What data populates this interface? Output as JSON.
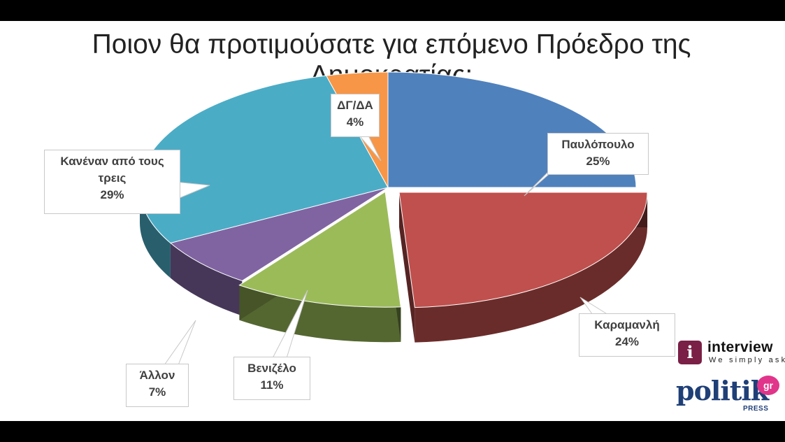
{
  "chart_data": {
    "type": "pie",
    "title": "Ποιον θα προτιμούσατε για επόμενο Πρόεδρο της Δημοκρατίας;",
    "slices": [
      {
        "label": "Παυλόπουλο",
        "value": 25,
        "value_label": "25%",
        "color": "#4f81bd"
      },
      {
        "label": "Καραμανλή",
        "value": 24,
        "value_label": "24%",
        "color": "#c0504d"
      },
      {
        "label": "Βενιζέλο",
        "value": 11,
        "value_label": "11%",
        "color": "#9bbb59"
      },
      {
        "label": "Άλλον",
        "value": 7,
        "value_label": "7%",
        "color": "#8064a2"
      },
      {
        "label": "Κανέναν από τους τρεις",
        "value": 29,
        "value_label": "29%",
        "color": "#4bacc6"
      },
      {
        "label": "ΔΓ/ΔΑ",
        "value": 4,
        "value_label": "4%",
        "color": "#f79646"
      }
    ],
    "legend": "none",
    "style": "3d-exploded"
  },
  "labels": {
    "pavlopoulo": {
      "line1": "Παυλόπουλο",
      "line2": "25%"
    },
    "karamanli": {
      "line1": "Καραμανλή",
      "line2": "24%"
    },
    "venizelo": {
      "line1": "Βενιζέλο",
      "line2": "11%"
    },
    "allon": {
      "line1": "Άλλον",
      "line2": "7%"
    },
    "kanenan": {
      "line1": "Κανέναν από τους",
      "line2": "τρεις",
      "line3": "29%"
    },
    "dgda": {
      "line1": "ΔΓ/ΔΑ",
      "line2": "4%"
    }
  },
  "logos": {
    "interview_badge": "i",
    "interview_name": "interview",
    "interview_tagline": "We simply ask",
    "politik_word": "politik",
    "politik_gr": "gr",
    "politik_press": "PRESS"
  }
}
